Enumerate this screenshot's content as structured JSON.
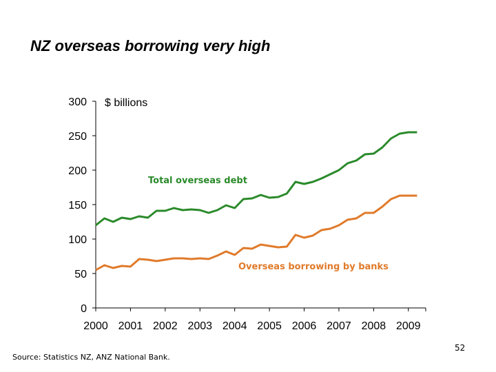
{
  "slide": {
    "title": "NZ overseas borrowing very high",
    "source": "Source:   Statistics NZ, ANZ National Bank.",
    "page_number": "52"
  },
  "chart_data": {
    "type": "line",
    "unit_label": "$ billions",
    "xlabel": "",
    "ylabel": "",
    "ylim": [
      0,
      300
    ],
    "yticks": [
      0,
      50,
      100,
      150,
      200,
      250,
      300
    ],
    "xlim": [
      2000,
      2009.5
    ],
    "xticks": [
      "2000",
      "2001",
      "2002",
      "2003",
      "2004",
      "2005",
      "2006",
      "2007",
      "2008",
      "2009"
    ],
    "grid": false,
    "series": [
      {
        "name": "Total overseas debt",
        "color": "#2a8a2a",
        "x": [
          2000.0,
          2000.25,
          2000.5,
          2000.75,
          2001.0,
          2001.25,
          2001.5,
          2001.75,
          2002.0,
          2002.25,
          2002.5,
          2002.75,
          2003.0,
          2003.25,
          2003.5,
          2003.75,
          2004.0,
          2004.25,
          2004.5,
          2004.75,
          2005.0,
          2005.25,
          2005.5,
          2005.75,
          2006.0,
          2006.25,
          2006.5,
          2006.75,
          2007.0,
          2007.25,
          2007.5,
          2007.75,
          2008.0,
          2008.25,
          2008.5,
          2008.75,
          2009.0,
          2009.25
        ],
        "values": [
          120,
          130,
          125,
          131,
          129,
          133,
          131,
          141,
          141,
          145,
          142,
          143,
          142,
          138,
          142,
          149,
          145,
          158,
          159,
          164,
          160,
          161,
          166,
          183,
          180,
          183,
          188,
          194,
          200,
          210,
          214,
          223,
          224,
          233,
          246,
          253,
          255,
          255
        ]
      },
      {
        "name": "Overseas borrowing by banks",
        "color": "#e07a2a",
        "x": [
          2000.0,
          2000.25,
          2000.5,
          2000.75,
          2001.0,
          2001.25,
          2001.5,
          2001.75,
          2002.0,
          2002.25,
          2002.5,
          2002.75,
          2003.0,
          2003.25,
          2003.5,
          2003.75,
          2004.0,
          2004.25,
          2004.5,
          2004.75,
          2005.0,
          2005.25,
          2005.5,
          2005.75,
          2006.0,
          2006.25,
          2006.5,
          2006.75,
          2007.0,
          2007.25,
          2007.5,
          2007.75,
          2008.0,
          2008.25,
          2008.5,
          2008.75,
          2009.0,
          2009.25
        ],
        "values": [
          55,
          62,
          58,
          61,
          60,
          71,
          70,
          68,
          70,
          72,
          72,
          71,
          72,
          71,
          76,
          82,
          77,
          87,
          86,
          92,
          90,
          88,
          89,
          106,
          102,
          105,
          113,
          115,
          120,
          128,
          130,
          138,
          138,
          147,
          158,
          163,
          163,
          163
        ]
      }
    ]
  }
}
